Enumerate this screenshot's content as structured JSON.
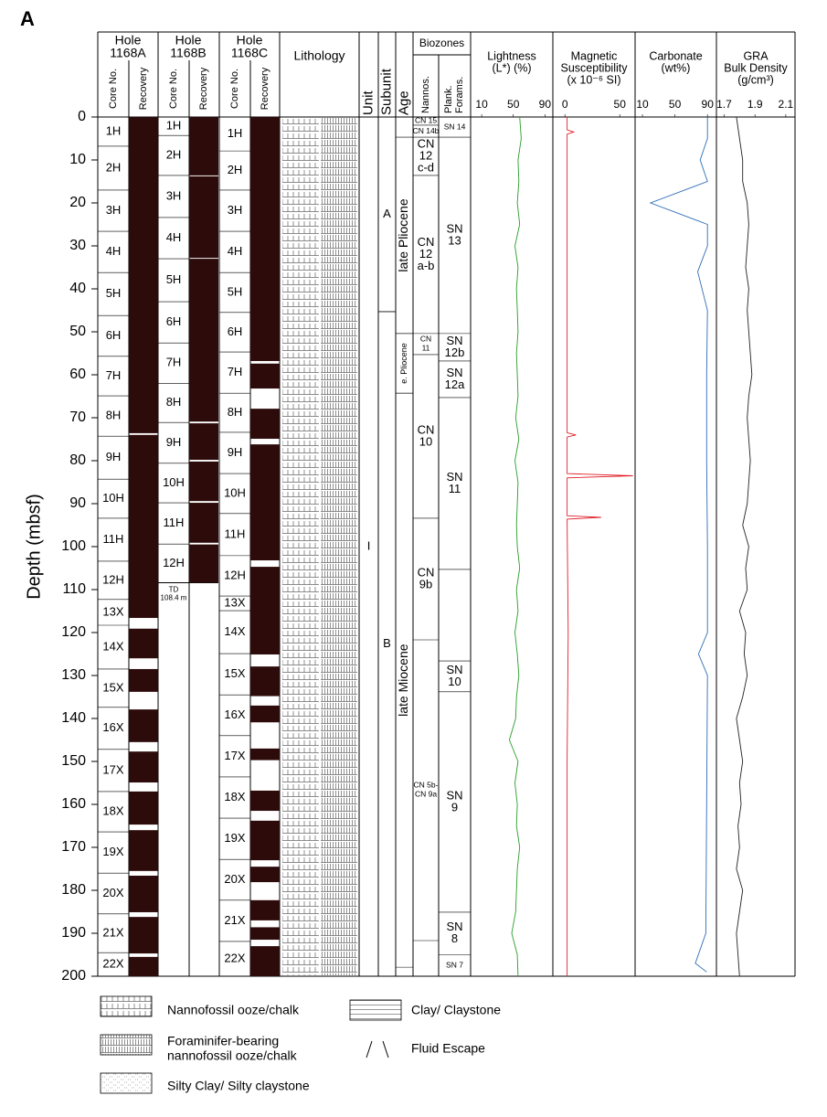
{
  "figure_label": "A",
  "depth_axis": {
    "label": "Depth (mbsf)",
    "lim": [
      0,
      200
    ],
    "ticks": [
      0,
      10,
      20,
      30,
      40,
      50,
      60,
      70,
      80,
      90,
      100,
      110,
      120,
      130,
      140,
      150,
      160,
      170,
      180,
      190,
      200
    ]
  },
  "core_no_label": "Core No.",
  "recovery_label": "Recovery",
  "holes": [
    {
      "title_lines": [
        "Hole",
        "1168A"
      ],
      "bottom": 200,
      "cores": [
        {
          "name": "1H",
          "top": 0
        },
        {
          "name": "2H",
          "top": 6.8
        },
        {
          "name": "3H",
          "top": 17
        },
        {
          "name": "4H",
          "top": 26.6
        },
        {
          "name": "5H",
          "top": 36.2
        },
        {
          "name": "6H",
          "top": 46.2
        },
        {
          "name": "7H",
          "top": 55.7
        },
        {
          "name": "8H",
          "top": 64.9
        },
        {
          "name": "9H",
          "top": 74.3
        },
        {
          "name": "10H",
          "top": 84.3
        },
        {
          "name": "11H",
          "top": 93.4
        },
        {
          "name": "12H",
          "top": 103.4
        },
        {
          "name": "13X",
          "top": 112.3
        },
        {
          "name": "14X",
          "top": 118.3
        },
        {
          "name": "15X",
          "top": 128.5
        },
        {
          "name": "16X",
          "top": 137.4
        },
        {
          "name": "17X",
          "top": 147.2
        },
        {
          "name": "18X",
          "top": 157
        },
        {
          "name": "19X",
          "top": 166.4
        },
        {
          "name": "20X",
          "top": 176
        },
        {
          "name": "21X",
          "top": 185.5
        },
        {
          "name": "22X",
          "top": 194.5
        }
      ],
      "recovered": [
        [
          0,
          73.6
        ],
        [
          74.0,
          116.6
        ],
        [
          119.1,
          126.0
        ],
        [
          128.5,
          133.8
        ],
        [
          137.9,
          145.5
        ],
        [
          147.7,
          154.9
        ],
        [
          157.0,
          164.7
        ],
        [
          166.0,
          175.5
        ],
        [
          176.6,
          185.1
        ],
        [
          186.2,
          194.7
        ],
        [
          195.5,
          200
        ]
      ]
    },
    {
      "title_lines": [
        "Hole",
        "1168B"
      ],
      "bottom": 108.4,
      "td_lines": [
        "TD",
        "108.4 m"
      ],
      "cores": [
        {
          "name": "1H",
          "top": 0
        },
        {
          "name": "2H",
          "top": 4.3
        },
        {
          "name": "3H",
          "top": 13.6
        },
        {
          "name": "4H",
          "top": 23.4
        },
        {
          "name": "5H",
          "top": 33
        },
        {
          "name": "6H",
          "top": 43
        },
        {
          "name": "7H",
          "top": 52.6
        },
        {
          "name": "8H",
          "top": 62
        },
        {
          "name": "9H",
          "top": 71.1
        },
        {
          "name": "10H",
          "top": 80.6
        },
        {
          "name": "11H",
          "top": 89.8
        },
        {
          "name": "12H",
          "top": 99.4
        }
      ],
      "recovered": [
        [
          0,
          13.6
        ],
        [
          13.8,
          32.8
        ],
        [
          33.0,
          70.9
        ],
        [
          71.3,
          79.8
        ],
        [
          80.2,
          89.4
        ],
        [
          89.8,
          99.1
        ],
        [
          99.5,
          108.4
        ]
      ]
    },
    {
      "title_lines": [
        "Hole",
        "1168C"
      ],
      "bottom": 200,
      "cores": [
        {
          "name": "1H",
          "top": 0
        },
        {
          "name": "2H",
          "top": 7.9
        },
        {
          "name": "3H",
          "top": 17
        },
        {
          "name": "4H",
          "top": 26.6
        },
        {
          "name": "5H",
          "top": 36.2
        },
        {
          "name": "6H",
          "top": 45.5
        },
        {
          "name": "7H",
          "top": 54.7
        },
        {
          "name": "8H",
          "top": 64.3
        },
        {
          "name": "9H",
          "top": 73.4
        },
        {
          "name": "10H",
          "top": 83
        },
        {
          "name": "11H",
          "top": 92.3
        },
        {
          "name": "12H",
          "top": 102.1
        },
        {
          "name": "13X",
          "top": 111.5
        },
        {
          "name": "14X",
          "top": 114.9
        },
        {
          "name": "15X",
          "top": 124.9
        },
        {
          "name": "16X",
          "top": 134.5
        },
        {
          "name": "17X",
          "top": 144
        },
        {
          "name": "18X",
          "top": 153.6
        },
        {
          "name": "19X",
          "top": 163.2
        },
        {
          "name": "20X",
          "top": 172.8
        },
        {
          "name": "21X",
          "top": 182.3
        },
        {
          "name": "22X",
          "top": 191.9
        }
      ],
      "recovered": [
        [
          0,
          56.8
        ],
        [
          57.4,
          63.2
        ],
        [
          67.9,
          74.9
        ],
        [
          76.2,
          103.2
        ],
        [
          104.7,
          125.1
        ],
        [
          127.9,
          134.8
        ],
        [
          137.0,
          140.9
        ],
        [
          147.0,
          149.7
        ],
        [
          156.8,
          161.5
        ],
        [
          163.8,
          173.0
        ],
        [
          174.5,
          178.1
        ],
        [
          182.3,
          187.0
        ],
        [
          188.6,
          191.5
        ],
        [
          193.0,
          200
        ]
      ]
    }
  ],
  "lithology_label": "Lithology",
  "unit": {
    "label": "Unit",
    "intervals": [
      {
        "label": "I",
        "top": 0,
        "bottom": 200
      }
    ]
  },
  "subunit": {
    "label": "Subunit",
    "intervals": [
      {
        "label": "A",
        "top": 0,
        "bottom": 45.3
      },
      {
        "label": "B",
        "top": 45.3,
        "bottom": 200
      }
    ]
  },
  "age": {
    "label": "Age",
    "intervals": [
      {
        "label": "late Pliocene",
        "top": 4.7,
        "bottom": 50.4
      },
      {
        "label": "e. Pliocene",
        "top": 50.4,
        "bottom": 64.3
      },
      {
        "label": "late Miocene",
        "top": 64.3,
        "bottom": 197.9
      }
    ]
  },
  "biozones": {
    "label": "Biozones",
    "nannos": {
      "label": "Nannos.",
      "zones": [
        {
          "lines": [
            "CN 15"
          ],
          "top": 0,
          "bottom": 1.9
        },
        {
          "lines": [
            "CN 14b"
          ],
          "top": 1.9,
          "bottom": 4.7
        },
        {
          "lines": [
            "CN",
            "12",
            "c-d"
          ],
          "top": 4.7,
          "bottom": 13.6
        },
        {
          "lines": [
            "CN",
            "12",
            "a-b"
          ],
          "top": 13.6,
          "bottom": 50.4
        },
        {
          "lines": [
            "CN",
            "11"
          ],
          "top": 50.4,
          "bottom": 55.3
        },
        {
          "lines": [
            "CN",
            "10"
          ],
          "top": 55.3,
          "bottom": 93.4
        },
        {
          "lines": [
            "CN",
            "9b"
          ],
          "top": 93.4,
          "bottom": 121.7
        },
        {
          "lines": [
            "CN 5b-",
            "CN 9a"
          ],
          "top": 121.7,
          "bottom": 191.7
        }
      ]
    },
    "forams": {
      "label_lines": [
        "Plank.",
        "Forams."
      ],
      "zones": [
        {
          "lines": [
            "SN 14"
          ],
          "top": 0,
          "bottom": 4.7
        },
        {
          "lines": [
            "SN",
            "13"
          ],
          "top": 4.7,
          "bottom": 50.4
        },
        {
          "lines": [
            "SN",
            "12b"
          ],
          "top": 50.4,
          "bottom": 56.8
        },
        {
          "lines": [
            "SN",
            "12a"
          ],
          "top": 56.8,
          "bottom": 65.3
        },
        {
          "lines": [
            "SN",
            "11"
          ],
          "top": 65.3,
          "bottom": 105.3
        },
        {
          "top": 105.3,
          "bottom": 126.6
        },
        {
          "lines": [
            "SN",
            "10"
          ],
          "top": 126.6,
          "bottom": 133.8
        },
        {
          "lines": [
            "SN",
            "9"
          ],
          "top": 133.8,
          "bottom": 185.1
        },
        {
          "lines": [
            "SN",
            "8"
          ],
          "top": 185.1,
          "bottom": 195
        },
        {
          "lines": [
            "SN 7"
          ],
          "top": 195,
          "bottom": 200
        }
      ]
    }
  },
  "logs": [
    {
      "title_lines": [
        "Lightness",
        "(L*) (%)"
      ],
      "color": "#2a9d2a",
      "xlim": [
        -4,
        100
      ],
      "xticks": [
        10,
        50,
        90
      ],
      "depth": [
        0,
        5,
        10,
        15,
        20,
        25,
        30,
        35,
        40,
        45,
        50,
        55,
        60,
        65,
        70,
        75,
        80,
        85,
        90,
        95,
        100,
        105,
        110,
        115,
        120,
        125,
        130,
        135,
        140,
        145,
        150,
        155,
        160,
        165,
        170,
        175,
        180,
        185,
        190,
        195,
        200
      ],
      "values": [
        58,
        60,
        56,
        57,
        55,
        58,
        52,
        56,
        54,
        55,
        56,
        54,
        55,
        56,
        53,
        57,
        52,
        56,
        55,
        54,
        55,
        58,
        54,
        56,
        52,
        55,
        57,
        54,
        53,
        45,
        56,
        52,
        55,
        54,
        58,
        55,
        54,
        53,
        48,
        55,
        56
      ]
    },
    {
      "title_lines": [
        "Magnetic",
        "Susceptibility",
        "(x 10⁻⁶ SI)"
      ],
      "color": "#e0202a",
      "xlim": [
        -11,
        64
      ],
      "xticks": [
        0,
        50
      ],
      "depth": [
        0,
        3,
        3.5,
        4,
        20,
        40,
        73.5,
        74,
        74.5,
        83,
        83.5,
        84,
        92.8,
        93.2,
        93.6,
        120,
        150,
        200
      ],
      "values": [
        2,
        2,
        8,
        2,
        2,
        2,
        2,
        10,
        2,
        2,
        62,
        2,
        2,
        33,
        2,
        3,
        2,
        2
      ]
    },
    {
      "title_lines": [
        "Carbonate",
        "(wt%)"
      ],
      "color": "#2f6db5",
      "xlim": [
        1,
        101
      ],
      "xticks": [
        10,
        50,
        90
      ],
      "depth": [
        0,
        5,
        10,
        15,
        20,
        25,
        30,
        36,
        45,
        60,
        80,
        100,
        120,
        125,
        130,
        160,
        190,
        197,
        199
      ],
      "values": [
        90,
        90,
        81,
        90,
        20,
        90,
        90,
        78,
        90,
        89,
        89,
        90,
        90,
        79,
        90,
        89,
        88,
        75,
        89
      ]
    },
    {
      "title_lines": [
        "GRA",
        "Bulk Density",
        "(g/cm³)"
      ],
      "color": "#222222",
      "xlim": [
        1.65,
        2.16
      ],
      "xticks": [
        1.7,
        1.9,
        2.1
      ],
      "depth": [
        0,
        5,
        10,
        15,
        20,
        25,
        30,
        35,
        40,
        45,
        50,
        55,
        60,
        65,
        70,
        75,
        80,
        85,
        90,
        95,
        100,
        105,
        110,
        115,
        120,
        125,
        130,
        135,
        140,
        145,
        150,
        155,
        160,
        165,
        170,
        175,
        180,
        185,
        190,
        195,
        200
      ],
      "values": [
        1.78,
        1.8,
        1.82,
        1.82,
        1.85,
        1.86,
        1.85,
        1.84,
        1.86,
        1.85,
        1.86,
        1.87,
        1.88,
        1.86,
        1.85,
        1.86,
        1.87,
        1.86,
        1.85,
        1.82,
        1.86,
        1.84,
        1.85,
        1.8,
        1.84,
        1.83,
        1.85,
        1.82,
        1.78,
        1.8,
        1.82,
        1.8,
        1.81,
        1.79,
        1.8,
        1.78,
        1.82,
        1.8,
        1.78,
        1.79,
        1.8
      ]
    }
  ],
  "legend": [
    {
      "lines": [
        "Nannofossil ooze/chalk"
      ]
    },
    {
      "lines": [
        "Foraminifer-bearing",
        "nannofossil ooze/chalk"
      ]
    },
    {
      "lines": [
        "Silty Clay/ Silty claystone"
      ]
    },
    {
      "lines": [
        "Clay/ Claystone"
      ]
    },
    {
      "lines": [
        "Fluid Escape"
      ]
    }
  ]
}
